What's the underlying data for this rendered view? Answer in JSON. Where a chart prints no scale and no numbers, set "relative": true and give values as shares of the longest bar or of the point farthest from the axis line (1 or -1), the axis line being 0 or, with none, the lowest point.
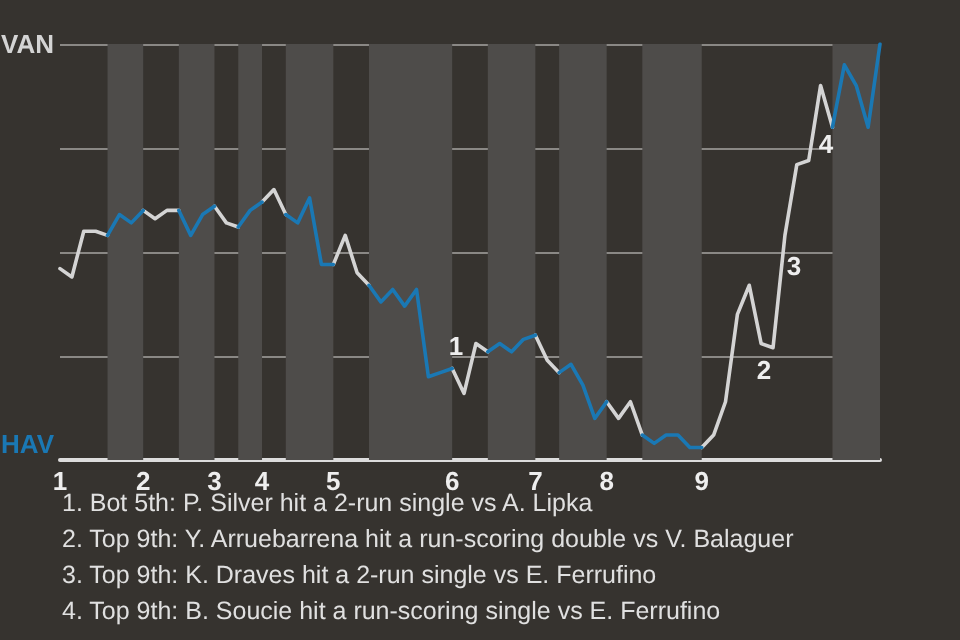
{
  "chart_data": {
    "type": "line",
    "relative": true,
    "categories": [
      "1",
      null,
      null,
      null,
      null,
      null,
      null,
      "2",
      null,
      null,
      null,
      null,
      null,
      "3",
      null,
      null,
      null,
      "4",
      null,
      null,
      null,
      null,
      null,
      "5",
      null,
      null,
      null,
      null,
      null,
      null,
      null,
      null,
      null,
      "6",
      null,
      null,
      null,
      null,
      null,
      null,
      "7",
      null,
      null,
      null,
      null,
      null,
      "8",
      null,
      null,
      null,
      null,
      null,
      null,
      null,
      "9",
      null,
      null,
      null,
      null,
      null,
      null,
      null,
      null,
      null,
      null,
      null,
      null,
      null,
      null,
      null
    ],
    "grid": "y",
    "marker": "none",
    "line_style": "solid",
    "series": [
      {
        "color": "#d4d4d4",
        "values": [
          0.46,
          0.44,
          0.55,
          0.55,
          0.54,
          null,
          null,
          0.6,
          0.58,
          0.6,
          0.6,
          null,
          null,
          0.61,
          0.57,
          0.56,
          null,
          0.62,
          0.65,
          0.59,
          null,
          null,
          null,
          0.47,
          0.54,
          0.45,
          0.42,
          null,
          null,
          null,
          null,
          null,
          null,
          0.22,
          0.16,
          0.28,
          0.26,
          null,
          null,
          null,
          0.3,
          0.24,
          0.21,
          null,
          null,
          null,
          0.14,
          0.1,
          0.14,
          0.06,
          null,
          null,
          null,
          null,
          0.03,
          0.06,
          0.14,
          0.35,
          0.42,
          0.28,
          0.27,
          0.54,
          0.71,
          0.72,
          0.9,
          0.8,
          null,
          null,
          null,
          null
        ]
      },
      {
        "color": "#1a78b4",
        "values": [
          null,
          null,
          null,
          null,
          0.54,
          0.59,
          0.57,
          0.6,
          null,
          null,
          0.6,
          0.54,
          0.59,
          0.61,
          null,
          0.56,
          0.6,
          0.62,
          null,
          0.59,
          0.57,
          0.63,
          0.47,
          0.47,
          null,
          null,
          0.42,
          0.38,
          0.41,
          0.37,
          0.41,
          0.2,
          0.21,
          0.22,
          null,
          null,
          0.26,
          0.28,
          0.26,
          0.29,
          0.3,
          null,
          0.21,
          0.23,
          0.18,
          0.1,
          0.14,
          null,
          null,
          0.06,
          0.04,
          0.06,
          0.06,
          0.03,
          0.03,
          null,
          null,
          null,
          null,
          null,
          null,
          null,
          null,
          null,
          null,
          0.8,
          0.95,
          0.9,
          0.8,
          1.0
        ]
      }
    ],
    "annotations": [
      "VAN",
      "HAV",
      "1",
      "2",
      "3",
      "4",
      "1. Bot 5th: P. Silver hit a 2-run single vs A. Lipka",
      "2. Top 9th: Y. Arruebarrena hit a run-scoring double vs V. Balaguer",
      "3. Top 9th: K. Draves hit a 2-run single vs E. Ferrufino",
      "4. Top 9th: B. Soucie hit a run-scoring single vs E. Ferrufino"
    ]
  }
}
